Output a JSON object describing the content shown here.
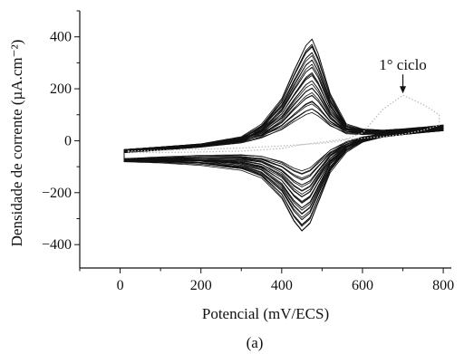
{
  "chart_data": {
    "type": "line",
    "xlabel": "Potencial (mV/ECS)",
    "ylabel": "Densidade de corrente (µA.cm⁻²)",
    "panel_label": "(a)",
    "xlim": [
      -100,
      820
    ],
    "ylim": [
      -490,
      500
    ],
    "xticks": [
      0,
      200,
      400,
      600,
      800
    ],
    "yticks": [
      -400,
      -200,
      0,
      200,
      400
    ],
    "grid": false,
    "annotation": {
      "text": "1° ciclo",
      "x": 700,
      "y": 175
    },
    "first_cycle": {
      "style": "dotted",
      "color": "#bdbdbd",
      "anodic": {
        "x": [
          20,
          150,
          300,
          400,
          450,
          500,
          550,
          600,
          650,
          700,
          750,
          790
        ],
        "y": [
          -40,
          -35,
          -28,
          -20,
          -15,
          -10,
          0,
          30,
          120,
          175,
          140,
          100
        ]
      },
      "cathodic": {
        "x": [
          790,
          750,
          700,
          650,
          600,
          550,
          500,
          450,
          400,
          300,
          150,
          20
        ],
        "y": [
          60,
          40,
          25,
          15,
          10,
          5,
          -5,
          -15,
          -30,
          -40,
          -45,
          -45
        ]
      }
    },
    "cycles": {
      "count": 30,
      "color": "#111111",
      "peak_anodic": {
        "x": 475,
        "y_range": [
          100,
          395
        ]
      },
      "peak_cathodic": {
        "x": 450,
        "y_range": [
          -110,
          -350
        ]
      },
      "max_cycle_shape": {
        "anodic": {
          "x": [
            10,
            100,
            200,
            300,
            350,
            400,
            430,
            460,
            475,
            490,
            520,
            560,
            600,
            650,
            700,
            760,
            800
          ],
          "y": [
            -40,
            -30,
            -18,
            10,
            60,
            160,
            270,
            370,
            395,
            340,
            180,
            60,
            40,
            35,
            40,
            48,
            55
          ]
        },
        "cathodic": {
          "x": [
            800,
            760,
            700,
            650,
            600,
            560,
            520,
            490,
            470,
            450,
            430,
            400,
            350,
            300,
            200,
            100,
            10
          ],
          "y": [
            45,
            40,
            30,
            20,
            0,
            -40,
            -120,
            -240,
            -320,
            -350,
            -310,
            -220,
            -140,
            -110,
            -90,
            -80,
            -75
          ]
        }
      }
    }
  }
}
